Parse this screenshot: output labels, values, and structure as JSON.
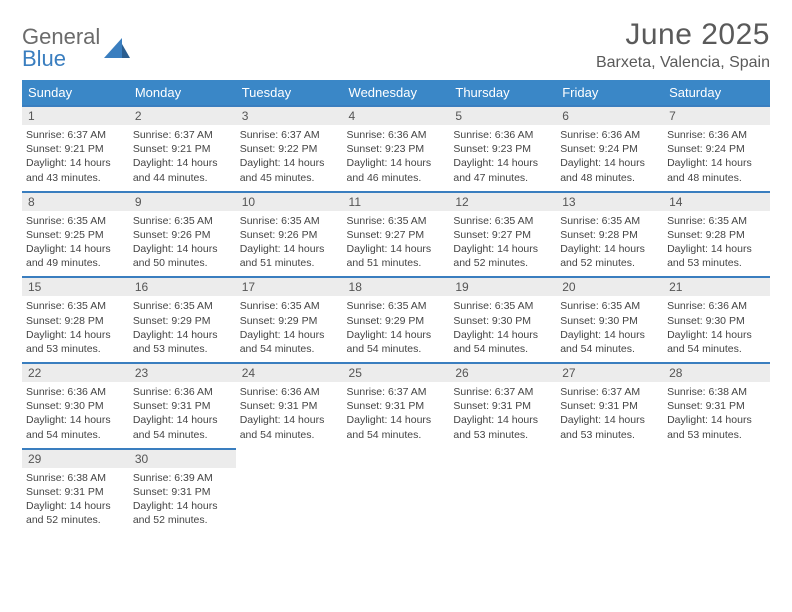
{
  "brand": {
    "word1": "General",
    "word2": "Blue"
  },
  "title": "June 2025",
  "location": "Barxeta, Valencia, Spain",
  "colors": {
    "header_bg": "#3a87c7",
    "border": "#3a7ebf",
    "daynum_bg": "#ececec",
    "text": "#444444",
    "title_color": "#5a5a5a"
  },
  "days_of_week": [
    "Sunday",
    "Monday",
    "Tuesday",
    "Wednesday",
    "Thursday",
    "Friday",
    "Saturday"
  ],
  "days": [
    {
      "n": "1",
      "sr": "Sunrise: 6:37 AM",
      "ss": "Sunset: 9:21 PM",
      "d1": "Daylight: 14 hours",
      "d2": "and 43 minutes."
    },
    {
      "n": "2",
      "sr": "Sunrise: 6:37 AM",
      "ss": "Sunset: 9:21 PM",
      "d1": "Daylight: 14 hours",
      "d2": "and 44 minutes."
    },
    {
      "n": "3",
      "sr": "Sunrise: 6:37 AM",
      "ss": "Sunset: 9:22 PM",
      "d1": "Daylight: 14 hours",
      "d2": "and 45 minutes."
    },
    {
      "n": "4",
      "sr": "Sunrise: 6:36 AM",
      "ss": "Sunset: 9:23 PM",
      "d1": "Daylight: 14 hours",
      "d2": "and 46 minutes."
    },
    {
      "n": "5",
      "sr": "Sunrise: 6:36 AM",
      "ss": "Sunset: 9:23 PM",
      "d1": "Daylight: 14 hours",
      "d2": "and 47 minutes."
    },
    {
      "n": "6",
      "sr": "Sunrise: 6:36 AM",
      "ss": "Sunset: 9:24 PM",
      "d1": "Daylight: 14 hours",
      "d2": "and 48 minutes."
    },
    {
      "n": "7",
      "sr": "Sunrise: 6:36 AM",
      "ss": "Sunset: 9:24 PM",
      "d1": "Daylight: 14 hours",
      "d2": "and 48 minutes."
    },
    {
      "n": "8",
      "sr": "Sunrise: 6:35 AM",
      "ss": "Sunset: 9:25 PM",
      "d1": "Daylight: 14 hours",
      "d2": "and 49 minutes."
    },
    {
      "n": "9",
      "sr": "Sunrise: 6:35 AM",
      "ss": "Sunset: 9:26 PM",
      "d1": "Daylight: 14 hours",
      "d2": "and 50 minutes."
    },
    {
      "n": "10",
      "sr": "Sunrise: 6:35 AM",
      "ss": "Sunset: 9:26 PM",
      "d1": "Daylight: 14 hours",
      "d2": "and 51 minutes."
    },
    {
      "n": "11",
      "sr": "Sunrise: 6:35 AM",
      "ss": "Sunset: 9:27 PM",
      "d1": "Daylight: 14 hours",
      "d2": "and 51 minutes."
    },
    {
      "n": "12",
      "sr": "Sunrise: 6:35 AM",
      "ss": "Sunset: 9:27 PM",
      "d1": "Daylight: 14 hours",
      "d2": "and 52 minutes."
    },
    {
      "n": "13",
      "sr": "Sunrise: 6:35 AM",
      "ss": "Sunset: 9:28 PM",
      "d1": "Daylight: 14 hours",
      "d2": "and 52 minutes."
    },
    {
      "n": "14",
      "sr": "Sunrise: 6:35 AM",
      "ss": "Sunset: 9:28 PM",
      "d1": "Daylight: 14 hours",
      "d2": "and 53 minutes."
    },
    {
      "n": "15",
      "sr": "Sunrise: 6:35 AM",
      "ss": "Sunset: 9:28 PM",
      "d1": "Daylight: 14 hours",
      "d2": "and 53 minutes."
    },
    {
      "n": "16",
      "sr": "Sunrise: 6:35 AM",
      "ss": "Sunset: 9:29 PM",
      "d1": "Daylight: 14 hours",
      "d2": "and 53 minutes."
    },
    {
      "n": "17",
      "sr": "Sunrise: 6:35 AM",
      "ss": "Sunset: 9:29 PM",
      "d1": "Daylight: 14 hours",
      "d2": "and 54 minutes."
    },
    {
      "n": "18",
      "sr": "Sunrise: 6:35 AM",
      "ss": "Sunset: 9:29 PM",
      "d1": "Daylight: 14 hours",
      "d2": "and 54 minutes."
    },
    {
      "n": "19",
      "sr": "Sunrise: 6:35 AM",
      "ss": "Sunset: 9:30 PM",
      "d1": "Daylight: 14 hours",
      "d2": "and 54 minutes."
    },
    {
      "n": "20",
      "sr": "Sunrise: 6:35 AM",
      "ss": "Sunset: 9:30 PM",
      "d1": "Daylight: 14 hours",
      "d2": "and 54 minutes."
    },
    {
      "n": "21",
      "sr": "Sunrise: 6:36 AM",
      "ss": "Sunset: 9:30 PM",
      "d1": "Daylight: 14 hours",
      "d2": "and 54 minutes."
    },
    {
      "n": "22",
      "sr": "Sunrise: 6:36 AM",
      "ss": "Sunset: 9:30 PM",
      "d1": "Daylight: 14 hours",
      "d2": "and 54 minutes."
    },
    {
      "n": "23",
      "sr": "Sunrise: 6:36 AM",
      "ss": "Sunset: 9:31 PM",
      "d1": "Daylight: 14 hours",
      "d2": "and 54 minutes."
    },
    {
      "n": "24",
      "sr": "Sunrise: 6:36 AM",
      "ss": "Sunset: 9:31 PM",
      "d1": "Daylight: 14 hours",
      "d2": "and 54 minutes."
    },
    {
      "n": "25",
      "sr": "Sunrise: 6:37 AM",
      "ss": "Sunset: 9:31 PM",
      "d1": "Daylight: 14 hours",
      "d2": "and 54 minutes."
    },
    {
      "n": "26",
      "sr": "Sunrise: 6:37 AM",
      "ss": "Sunset: 9:31 PM",
      "d1": "Daylight: 14 hours",
      "d2": "and 53 minutes."
    },
    {
      "n": "27",
      "sr": "Sunrise: 6:37 AM",
      "ss": "Sunset: 9:31 PM",
      "d1": "Daylight: 14 hours",
      "d2": "and 53 minutes."
    },
    {
      "n": "28",
      "sr": "Sunrise: 6:38 AM",
      "ss": "Sunset: 9:31 PM",
      "d1": "Daylight: 14 hours",
      "d2": "and 53 minutes."
    },
    {
      "n": "29",
      "sr": "Sunrise: 6:38 AM",
      "ss": "Sunset: 9:31 PM",
      "d1": "Daylight: 14 hours",
      "d2": "and 52 minutes."
    },
    {
      "n": "30",
      "sr": "Sunrise: 6:39 AM",
      "ss": "Sunset: 9:31 PM",
      "d1": "Daylight: 14 hours",
      "d2": "and 52 minutes."
    }
  ],
  "first_weekday_offset": 0,
  "fonts": {
    "title_size": 30,
    "location_size": 16,
    "dow_size": 13,
    "body_size": 10.5
  }
}
